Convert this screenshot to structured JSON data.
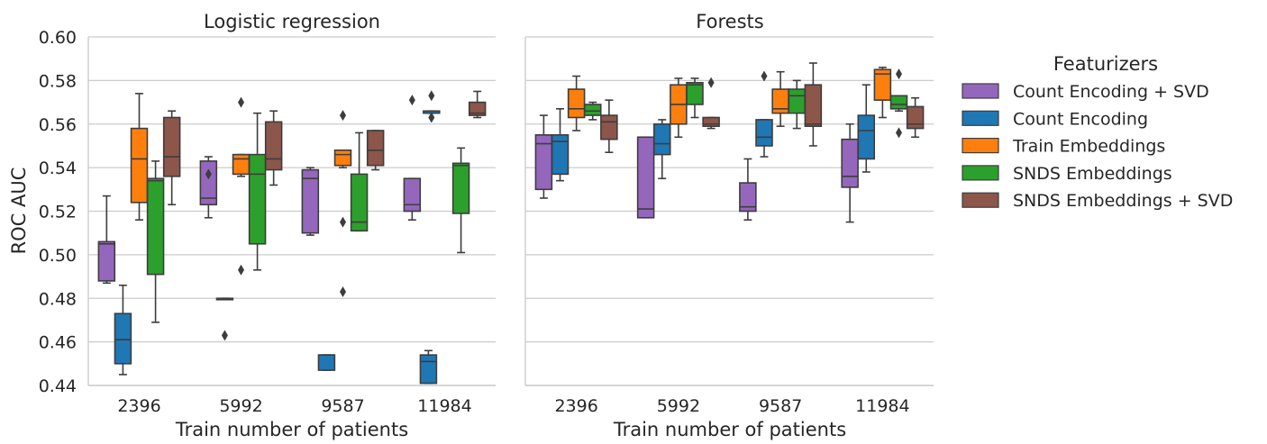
{
  "chart_data": {
    "type": "box",
    "ylabel": "ROC AUC",
    "xlabel": "Train number of patients",
    "ylim": [
      0.44,
      0.6
    ],
    "yticks": [
      "0.44",
      "0.46",
      "0.48",
      "0.50",
      "0.52",
      "0.54",
      "0.56",
      "0.58",
      "0.60"
    ],
    "grid": "horizontal",
    "legend_placement": "right",
    "legend_title": "Featurizers",
    "categories": [
      "2396",
      "5992",
      "9587",
      "11984"
    ],
    "series": [
      {
        "name": "Count Encoding + SVD",
        "color": "#9467bd"
      },
      {
        "name": "Count Encoding",
        "color": "#1f77b4"
      },
      {
        "name": "Train Embeddings",
        "color": "#ff7f0e"
      },
      {
        "name": "SNDS Embeddings",
        "color": "#2ca02c"
      },
      {
        "name": "SNDS Embeddings + SVD",
        "color": "#8c564b"
      }
    ],
    "panels": [
      {
        "title": "Logistic regression",
        "boxes": [
          [
            {
              "whislo": 0.487,
              "q1": 0.488,
              "med": 0.505,
              "q3": 0.506,
              "whishi": 0.527,
              "fliers": []
            },
            {
              "whislo": 0.445,
              "q1": 0.45,
              "med": 0.461,
              "q3": 0.473,
              "whishi": 0.486,
              "fliers": []
            },
            {
              "whislo": 0.516,
              "q1": 0.524,
              "med": 0.544,
              "q3": 0.558,
              "whishi": 0.574,
              "fliers": []
            },
            {
              "whislo": 0.469,
              "q1": 0.491,
              "med": 0.534,
              "q3": 0.535,
              "whishi": 0.543,
              "fliers": []
            },
            {
              "whislo": 0.523,
              "q1": 0.536,
              "med": 0.545,
              "q3": 0.563,
              "whishi": 0.566,
              "fliers": []
            }
          ],
          [
            {
              "whislo": 0.517,
              "q1": 0.523,
              "med": 0.526,
              "q3": 0.543,
              "whishi": 0.545,
              "fliers": [
                0.537
              ]
            },
            {
              "whislo": 0.48,
              "q1": 0.48,
              "med": 0.48,
              "q3": 0.48,
              "whishi": 0.48,
              "fliers": [
                0.463
              ]
            },
            {
              "whislo": 0.536,
              "q1": 0.537,
              "med": 0.544,
              "q3": 0.546,
              "whishi": 0.546,
              "fliers": [
                0.57,
                0.493
              ]
            },
            {
              "whislo": 0.493,
              "q1": 0.505,
              "med": 0.537,
              "q3": 0.546,
              "whishi": 0.565,
              "fliers": []
            },
            {
              "whislo": 0.532,
              "q1": 0.539,
              "med": 0.544,
              "q3": 0.561,
              "whishi": 0.566,
              "fliers": []
            }
          ],
          [
            {
              "whislo": 0.509,
              "q1": 0.51,
              "med": 0.535,
              "q3": 0.539,
              "whishi": 0.54,
              "fliers": []
            },
            {
              "whislo": 0.447,
              "q1": 0.447,
              "med": 0.454,
              "q3": 0.454,
              "whishi": 0.454,
              "fliers": []
            },
            {
              "whislo": 0.54,
              "q1": 0.541,
              "med": 0.546,
              "q3": 0.548,
              "whishi": 0.548,
              "fliers": [
                0.564,
                0.515,
                0.483
              ]
            },
            {
              "whislo": 0.511,
              "q1": 0.511,
              "med": 0.515,
              "q3": 0.537,
              "whishi": 0.556,
              "fliers": []
            },
            {
              "whislo": 0.539,
              "q1": 0.541,
              "med": 0.548,
              "q3": 0.557,
              "whishi": 0.557,
              "fliers": []
            }
          ],
          [
            {
              "whislo": 0.516,
              "q1": 0.52,
              "med": 0.523,
              "q3": 0.535,
              "whishi": 0.535,
              "fliers": [
                0.571
              ]
            },
            {
              "whislo": 0.441,
              "q1": 0.441,
              "med": 0.451,
              "q3": 0.454,
              "whishi": 0.456,
              "fliers": []
            },
            null,
            {
              "whislo": 0.501,
              "q1": 0.519,
              "med": 0.541,
              "q3": 0.542,
              "whishi": 0.549,
              "fliers": []
            },
            {
              "whislo": 0.563,
              "q1": 0.564,
              "med": 0.565,
              "q3": 0.57,
              "whishi": 0.575,
              "fliers": []
            }
          ]
        ],
        "extra_marks": [
          {
            "category": 3,
            "x_offset": -0.13,
            "whislo": 0.565,
            "q1": 0.565,
            "med": 0.566,
            "q3": 0.566,
            "whishi": 0.566,
            "fliers": [
              0.573,
              0.563
            ],
            "color": "#1f77b4"
          }
        ]
      },
      {
        "title": "Forests",
        "boxes": [
          [
            {
              "whislo": 0.526,
              "q1": 0.53,
              "med": 0.551,
              "q3": 0.555,
              "whishi": 0.564,
              "fliers": []
            },
            {
              "whislo": 0.534,
              "q1": 0.537,
              "med": 0.552,
              "q3": 0.555,
              "whishi": 0.567,
              "fliers": []
            },
            {
              "whislo": 0.557,
              "q1": 0.563,
              "med": 0.567,
              "q3": 0.576,
              "whishi": 0.582,
              "fliers": []
            },
            {
              "whislo": 0.562,
              "q1": 0.564,
              "med": 0.566,
              "q3": 0.569,
              "whishi": 0.57,
              "fliers": []
            },
            {
              "whislo": 0.547,
              "q1": 0.553,
              "med": 0.561,
              "q3": 0.564,
              "whishi": 0.571,
              "fliers": []
            }
          ],
          [
            {
              "whislo": 0.517,
              "q1": 0.517,
              "med": 0.521,
              "q3": 0.554,
              "whishi": 0.554,
              "fliers": []
            },
            {
              "whislo": 0.535,
              "q1": 0.546,
              "med": 0.551,
              "q3": 0.56,
              "whishi": 0.562,
              "fliers": []
            },
            {
              "whislo": 0.554,
              "q1": 0.56,
              "med": 0.569,
              "q3": 0.578,
              "whishi": 0.581,
              "fliers": []
            },
            {
              "whislo": 0.563,
              "q1": 0.569,
              "med": 0.578,
              "q3": 0.579,
              "whishi": 0.581,
              "fliers": []
            },
            {
              "whislo": 0.558,
              "q1": 0.559,
              "med": 0.56,
              "q3": 0.563,
              "whishi": 0.563,
              "fliers": [
                0.579
              ]
            }
          ],
          [
            {
              "whislo": 0.516,
              "q1": 0.52,
              "med": 0.522,
              "q3": 0.533,
              "whishi": 0.544,
              "fliers": []
            },
            {
              "whislo": 0.545,
              "q1": 0.55,
              "med": 0.554,
              "q3": 0.562,
              "whishi": 0.562,
              "fliers": [
                0.582
              ]
            },
            {
              "whislo": 0.559,
              "q1": 0.565,
              "med": 0.567,
              "q3": 0.576,
              "whishi": 0.584,
              "fliers": []
            },
            {
              "whislo": 0.558,
              "q1": 0.565,
              "med": 0.573,
              "q3": 0.576,
              "whishi": 0.58,
              "fliers": []
            },
            {
              "whislo": 0.55,
              "q1": 0.559,
              "med": 0.56,
              "q3": 0.578,
              "whishi": 0.588,
              "fliers": []
            }
          ],
          [
            {
              "whislo": 0.515,
              "q1": 0.531,
              "med": 0.536,
              "q3": 0.553,
              "whishi": 0.56,
              "fliers": []
            },
            {
              "whislo": 0.538,
              "q1": 0.544,
              "med": 0.557,
              "q3": 0.564,
              "whishi": 0.578,
              "fliers": []
            },
            {
              "whislo": 0.563,
              "q1": 0.571,
              "med": 0.583,
              "q3": 0.585,
              "whishi": 0.586,
              "fliers": []
            },
            {
              "whislo": 0.566,
              "q1": 0.567,
              "med": 0.569,
              "q3": 0.573,
              "whishi": 0.573,
              "fliers": [
                0.583,
                0.556
              ]
            },
            {
              "whislo": 0.554,
              "q1": 0.558,
              "med": 0.56,
              "q3": 0.568,
              "whishi": 0.572,
              "fliers": []
            }
          ]
        ],
        "extra_marks": []
      }
    ]
  }
}
